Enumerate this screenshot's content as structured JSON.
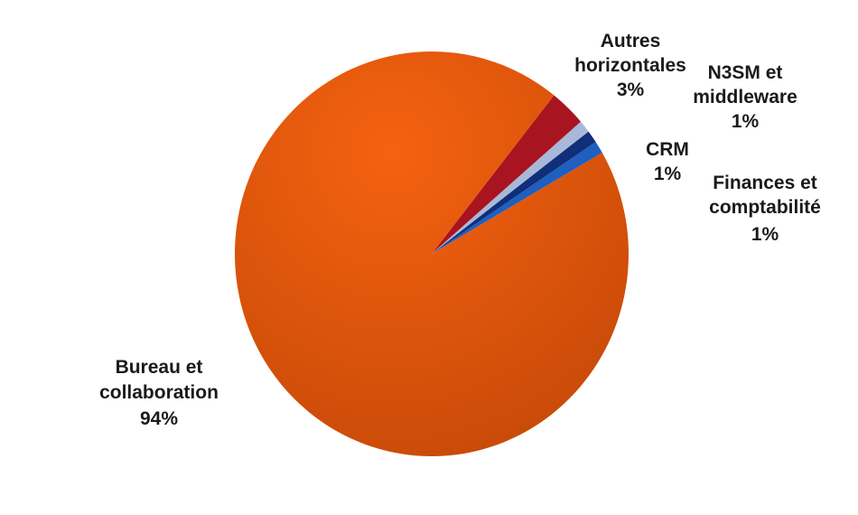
{
  "chart_data": {
    "type": "pie",
    "title": "",
    "slices": [
      {
        "name": "Finances et comptabilité",
        "value": 1,
        "display": "1%",
        "color": "#1f5fbf"
      },
      {
        "name": "CRM",
        "value": 1,
        "display": "1%",
        "color": "#0f2f7a"
      },
      {
        "name": "N3SM et middleware",
        "value": 1,
        "display": "1%",
        "color": "#a8b8d8"
      },
      {
        "name": "Autres horizontales",
        "value": 3,
        "display": "3%",
        "color": "#a8141f"
      },
      {
        "name": "Bureau et collaboration",
        "value": 94,
        "display": "94%",
        "color": "#f05a0a"
      }
    ],
    "legend": "none",
    "labels": {
      "finances": {
        "lines": [
          "Finances et",
          "comptabilité"
        ],
        "value": "1%"
      },
      "crm": {
        "lines": [
          "CRM"
        ],
        "value": "1%"
      },
      "n3sm": {
        "lines": [
          "N3SM et",
          "middleware"
        ],
        "value": "1%"
      },
      "autres": {
        "lines": [
          "Autres",
          "horizontales"
        ],
        "value": "3%"
      },
      "bureau": {
        "lines": [
          "Bureau et",
          "collaboration"
        ],
        "value": "94%"
      }
    }
  }
}
